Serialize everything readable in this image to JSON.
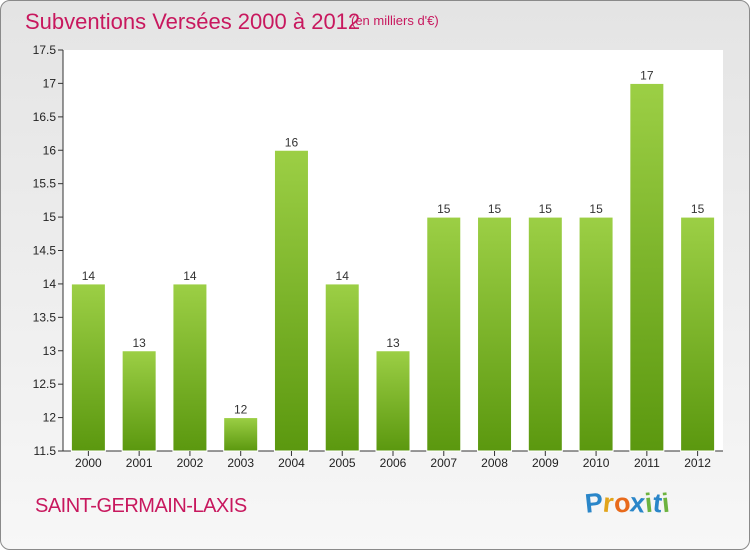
{
  "title": "Subventions Versées 2000 à 2012",
  "subtitle": "(en milliers d'€)",
  "commune": "SAINT-GERMAIN-LAXIS",
  "logo": {
    "letters": [
      "P",
      "r",
      "o",
      "x",
      "i",
      "t",
      "i"
    ],
    "colors": [
      "#2a86c9",
      "#e2a41a",
      "#e86a1b",
      "#2a86c9",
      "#6db33f",
      "#2a86c9",
      "#6db33f"
    ]
  },
  "colors": {
    "accent": "#c8185e",
    "bar_light": "#9ccf45",
    "bar_dark": "#5b980f"
  },
  "chart_data": {
    "type": "bar",
    "categories": [
      "2000",
      "2001",
      "2002",
      "2003",
      "2004",
      "2005",
      "2006",
      "2007",
      "2008",
      "2009",
      "2010",
      "2011",
      "2012"
    ],
    "values": [
      14,
      13,
      14,
      12,
      16,
      14,
      13,
      15,
      15,
      15,
      15,
      17,
      15
    ],
    "value_labels": [
      "14",
      "13",
      "14",
      "12",
      "16",
      "14",
      "13",
      "15",
      "15",
      "15",
      "15",
      "17",
      "15"
    ],
    "yticks": [
      "11.5",
      "12",
      "12.5",
      "13",
      "13.5",
      "14",
      "14.5",
      "15",
      "15.5",
      "16",
      "16.5",
      "17",
      "17.5"
    ],
    "ylim": [
      11.5,
      17.5
    ],
    "grid": false
  }
}
